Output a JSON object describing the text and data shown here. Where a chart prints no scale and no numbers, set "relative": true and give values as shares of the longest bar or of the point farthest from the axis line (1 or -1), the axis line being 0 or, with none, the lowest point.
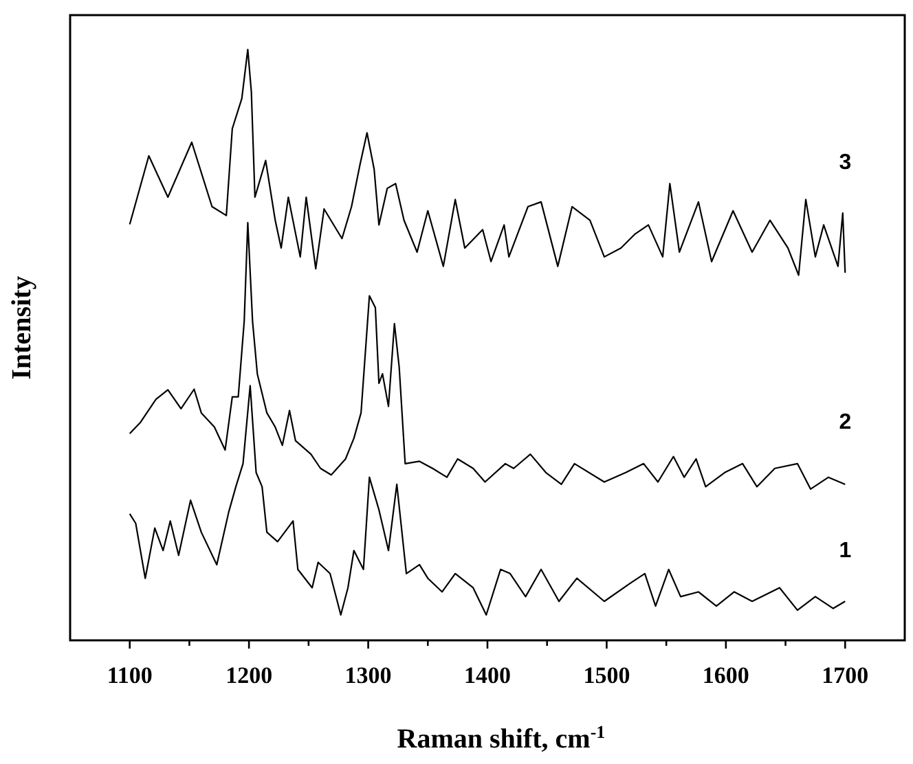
{
  "chart_data": {
    "type": "line",
    "relative": true,
    "xlabel": "Raman shift, cm$^{-1}$",
    "ylabel": "Intensity",
    "xlim": [
      1050,
      1750
    ],
    "xticks": [
      1100,
      {
        "value": 1150,
        "label": null
      },
      1200,
      {
        "value": 1250,
        "label": null
      },
      1300,
      {
        "value": 1350,
        "label": null
      },
      1400,
      {
        "value": 1450,
        "label": null
      },
      1500,
      {
        "value": 1550,
        "label": null
      },
      1600,
      {
        "value": 1650,
        "label": null
      },
      1700
    ],
    "grid": false,
    "legend": false,
    "marker": "none",
    "line_style": "solid",
    "series": [
      {
        "name": "1",
        "color": "#000000",
        "x": [
          1100,
          1105,
          1113,
          1121,
          1128,
          1134,
          1141,
          1151,
          1160,
          1173,
          1183,
          1189,
          1195,
          1201,
          1206,
          1211,
          1215,
          1224,
          1237,
          1241,
          1253,
          1258,
          1268,
          1277,
          1283,
          1288,
          1296,
          1301,
          1309,
          1317,
          1324,
          1332,
          1343,
          1350,
          1362,
          1373,
          1388,
          1399,
          1411,
          1419,
          1432,
          1445,
          1460,
          1475,
          1498,
          1520,
          1532,
          1541,
          1552,
          1562,
          1577,
          1592,
          1607,
          1622,
          1645,
          1660,
          1675,
          1690,
          1700
        ],
        "values": [
          0.214,
          0.198,
          0.105,
          0.19,
          0.152,
          0.202,
          0.144,
          0.237,
          0.183,
          0.128,
          0.217,
          0.26,
          0.299,
          0.431,
          0.284,
          0.26,
          0.183,
          0.167,
          0.202,
          0.12,
          0.089,
          0.132,
          0.113,
          0.043,
          0.089,
          0.152,
          0.12,
          0.276,
          0.221,
          0.152,
          0.264,
          0.113,
          0.128,
          0.105,
          0.082,
          0.113,
          0.089,
          0.043,
          0.12,
          0.113,
          0.074,
          0.12,
          0.066,
          0.105,
          0.066,
          0.097,
          0.113,
          0.058,
          0.12,
          0.074,
          0.082,
          0.058,
          0.082,
          0.066,
          0.089,
          0.051,
          0.074,
          0.054,
          0.066
        ]
      },
      {
        "name": "2",
        "color": "#000000",
        "x": [
          1100,
          1109,
          1122,
          1132,
          1143,
          1154,
          1160,
          1171,
          1180,
          1186,
          1191,
          1196,
          1199,
          1203,
          1207,
          1215,
          1222,
          1228,
          1234,
          1239,
          1252,
          1260,
          1269,
          1281,
          1288,
          1294,
          1301,
          1306,
          1309,
          1312,
          1317,
          1322,
          1326,
          1331,
          1343,
          1354,
          1366,
          1375,
          1388,
          1398,
          1415,
          1422,
          1436,
          1449,
          1462,
          1473,
          1498,
          1516,
          1531,
          1543,
          1556,
          1565,
          1575,
          1583,
          1599,
          1614,
          1626,
          1641,
          1660,
          1671,
          1686,
          1700
        ],
        "values": [
          0.35,
          0.369,
          0.408,
          0.424,
          0.392,
          0.425,
          0.385,
          0.361,
          0.322,
          0.412,
          0.412,
          0.54,
          0.707,
          0.54,
          0.451,
          0.385,
          0.361,
          0.33,
          0.389,
          0.338,
          0.315,
          0.291,
          0.28,
          0.307,
          0.342,
          0.385,
          0.583,
          0.563,
          0.435,
          0.451,
          0.396,
          0.536,
          0.462,
          0.299,
          0.303,
          0.291,
          0.276,
          0.307,
          0.291,
          0.268,
          0.299,
          0.291,
          0.315,
          0.284,
          0.264,
          0.299,
          0.268,
          0.284,
          0.299,
          0.268,
          0.311,
          0.276,
          0.307,
          0.26,
          0.284,
          0.299,
          0.26,
          0.291,
          0.299,
          0.256,
          0.276,
          0.264
        ]
      },
      {
        "name": "3",
        "color": "#000000",
        "x": [
          1100,
          1116,
          1132,
          1152,
          1169,
          1181,
          1186,
          1194,
          1199,
          1202,
          1205,
          1214,
          1222,
          1227,
          1233,
          1243,
          1248,
          1256,
          1263,
          1278,
          1286,
          1293,
          1299,
          1305,
          1309,
          1316,
          1323,
          1330,
          1341,
          1350,
          1363,
          1373,
          1381,
          1396,
          1403,
          1414,
          1418,
          1434,
          1445,
          1459,
          1471,
          1486,
          1498,
          1512,
          1524,
          1535,
          1547,
          1553,
          1561,
          1577,
          1588,
          1606,
          1622,
          1637,
          1652,
          1661,
          1667,
          1675,
          1682,
          1694,
          1698,
          1700
        ],
        "values": [
          0.704,
          0.82,
          0.75,
          0.843,
          0.734,
          0.719,
          0.866,
          0.917,
          1,
          0.928,
          0.75,
          0.812,
          0.711,
          0.664,
          0.75,
          0.649,
          0.75,
          0.629,
          0.73,
          0.68,
          0.734,
          0.804,
          0.859,
          0.797,
          0.703,
          0.765,
          0.773,
          0.711,
          0.657,
          0.727,
          0.633,
          0.746,
          0.664,
          0.695,
          0.641,
          0.703,
          0.649,
          0.734,
          0.742,
          0.633,
          0.734,
          0.711,
          0.649,
          0.664,
          0.688,
          0.703,
          0.649,
          0.773,
          0.657,
          0.742,
          0.641,
          0.727,
          0.657,
          0.711,
          0.664,
          0.618,
          0.746,
          0.649,
          0.703,
          0.633,
          0.723,
          0.622
        ]
      }
    ]
  }
}
